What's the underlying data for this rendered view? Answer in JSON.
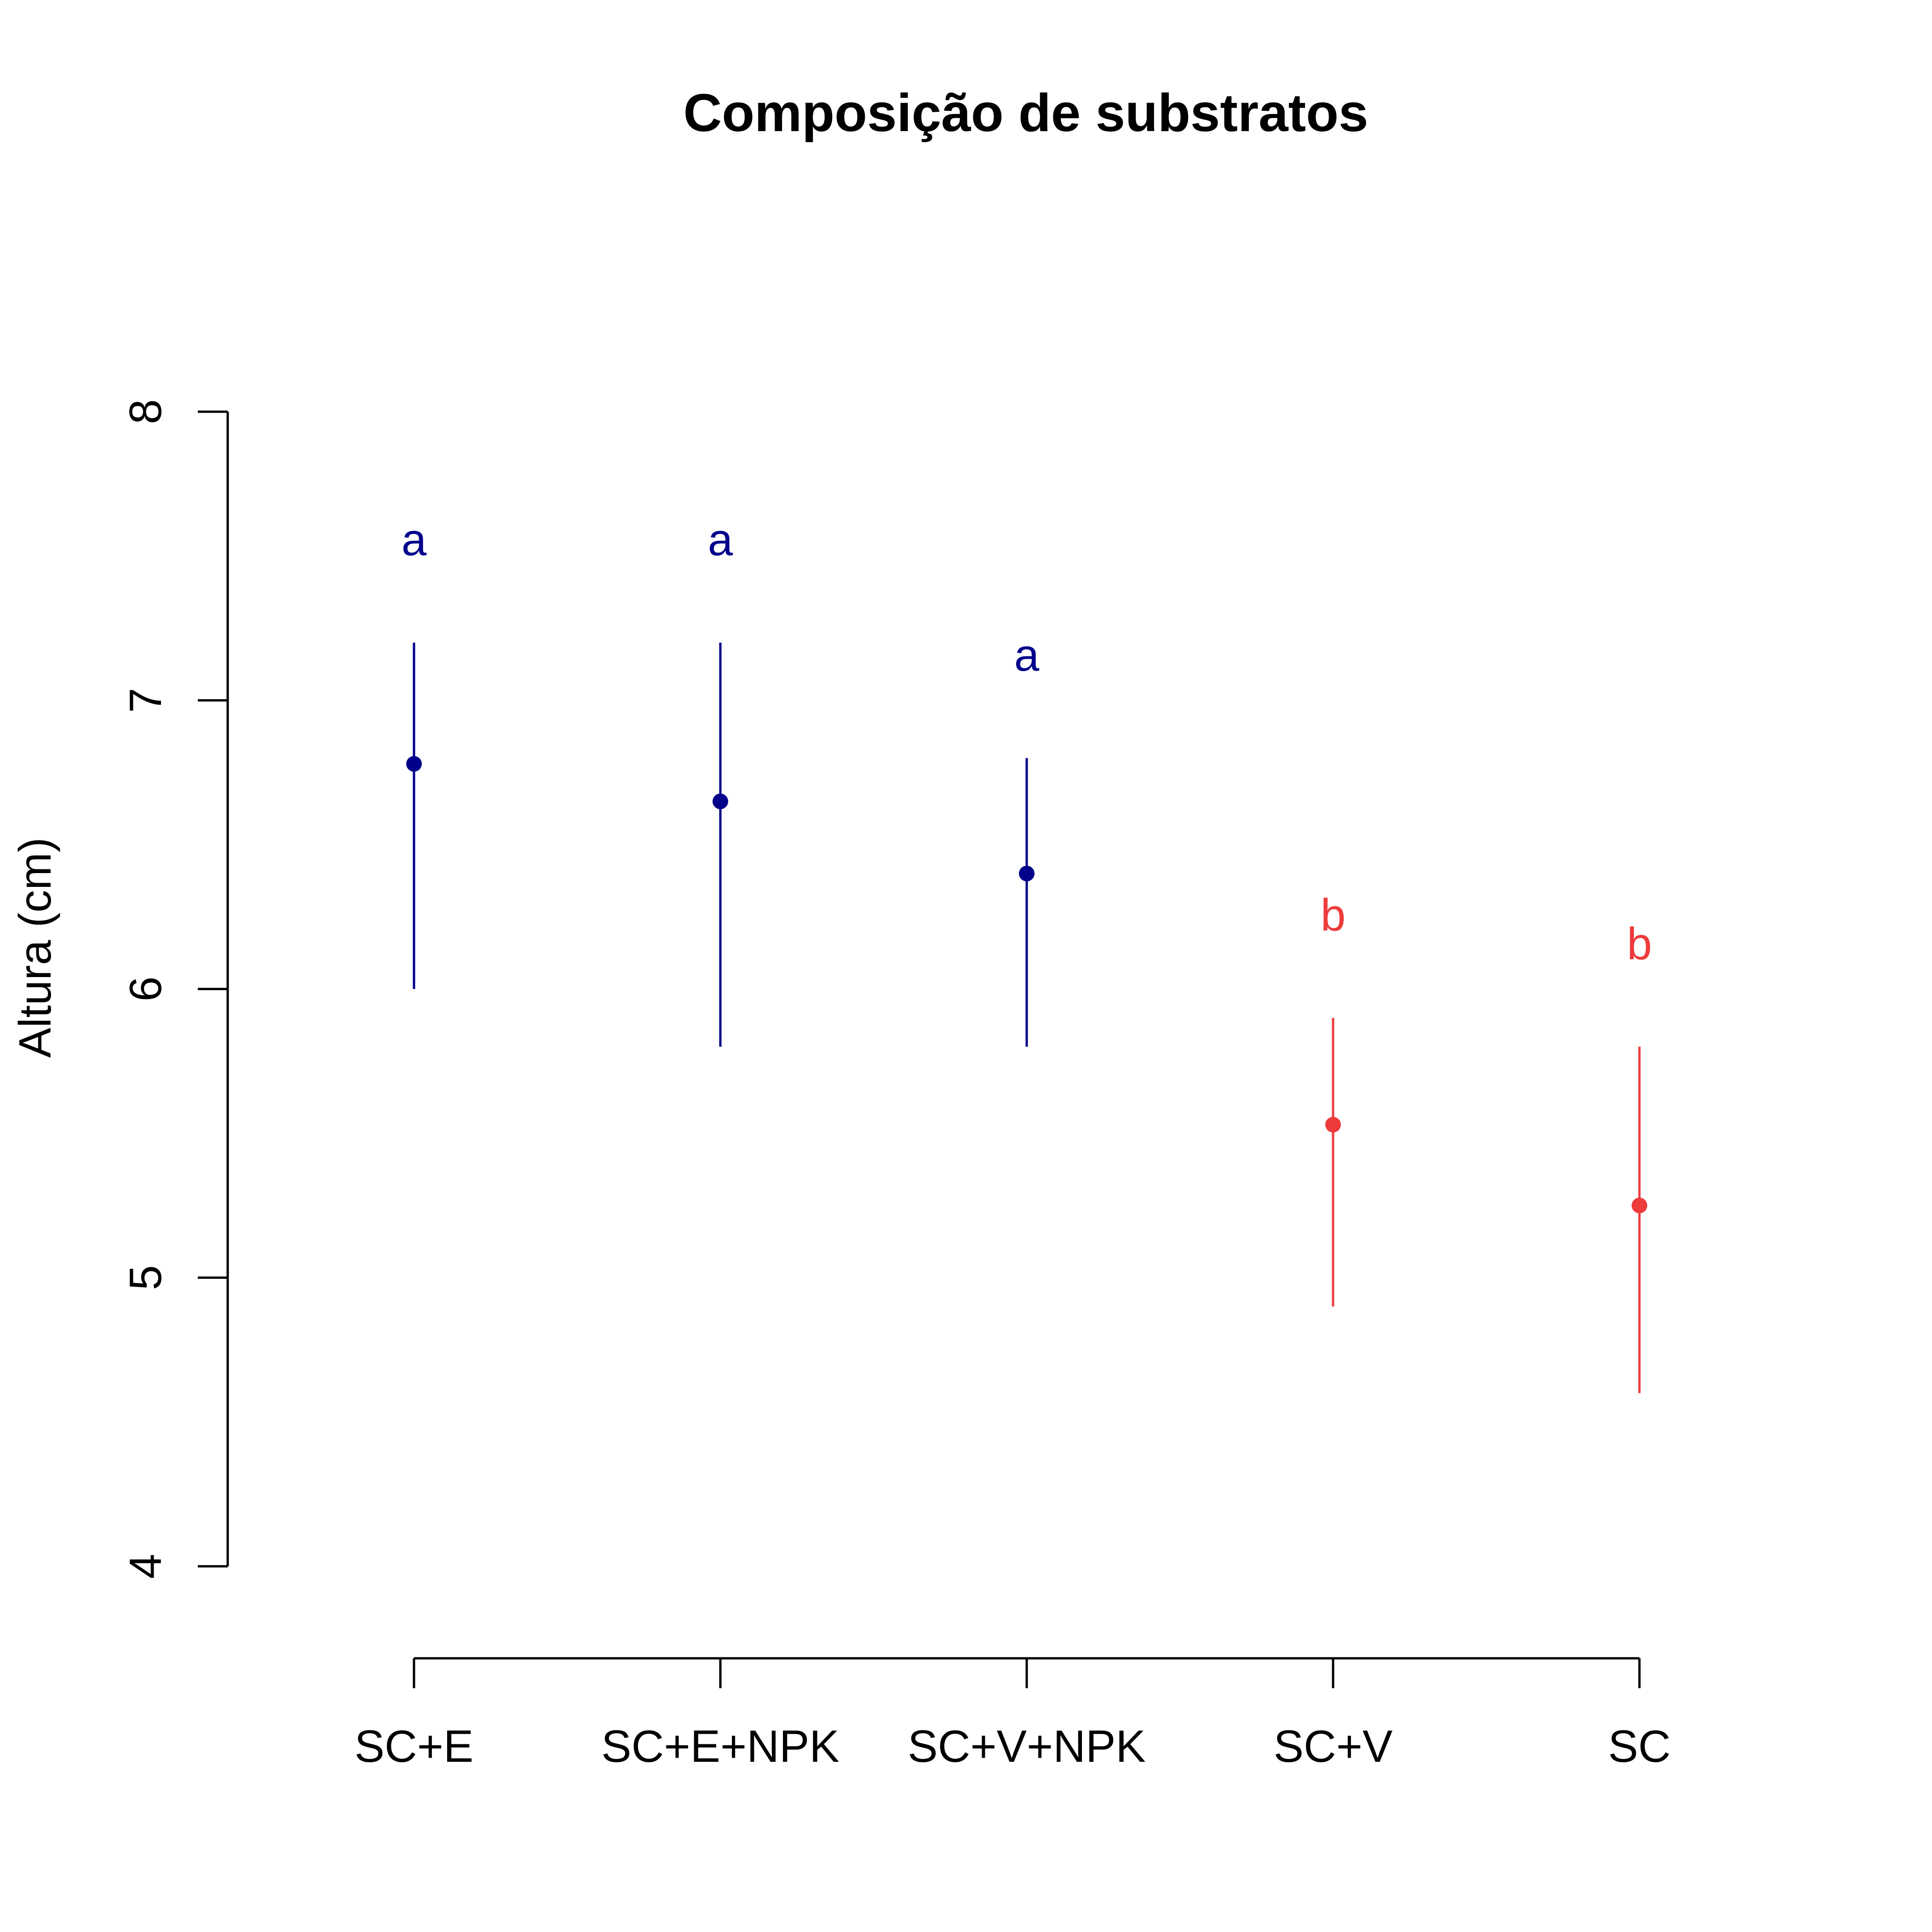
{
  "chart_data": {
    "type": "scatter",
    "title": "Composição de substratos",
    "xlabel": "",
    "ylabel": "Altura (cm)",
    "ylim": [
      4,
      8
    ],
    "yticks": [
      4,
      5,
      6,
      7,
      8
    ],
    "ytick_labels": [
      "4",
      "5",
      "6",
      "7",
      "8"
    ],
    "categories": [
      "SC+E",
      "SC+E+NPK",
      "SC+V+NPK",
      "SC+V",
      "SC"
    ],
    "values": [
      6.78,
      6.65,
      6.4,
      5.53,
      5.25
    ],
    "error_low": [
      6.0,
      5.8,
      5.8,
      4.9,
      4.6
    ],
    "error_high": [
      7.2,
      7.2,
      6.8,
      5.9,
      5.8
    ],
    "group_letters": [
      "a",
      "a",
      "a",
      "b",
      "b"
    ],
    "point_colors": [
      "#00008B",
      "#00008B",
      "#00008B",
      "#EE3B3B",
      "#EE3B3B"
    ],
    "grid": false,
    "legend": "none"
  }
}
